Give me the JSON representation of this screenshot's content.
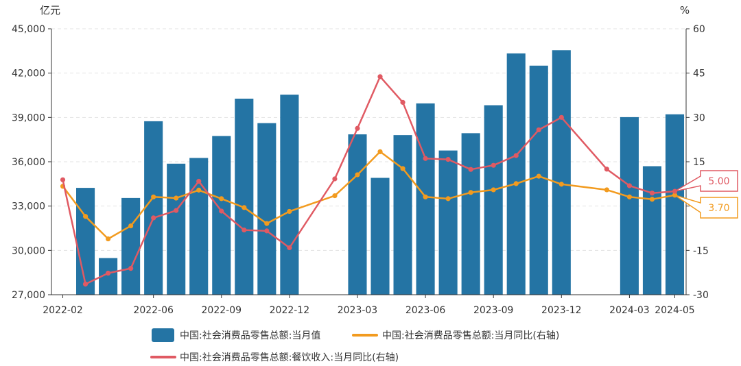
{
  "chart_data": {
    "type": "bar",
    "left_unit": "亿元",
    "right_unit": "%",
    "x_tick_labels": [
      "2022-02",
      "2022-06",
      "2022-09",
      "2022-12",
      "2023-03",
      "2023-06",
      "2023-09",
      "2023-12",
      "2024-03",
      "2024-05"
    ],
    "months": [
      "2022-02",
      "2022-03",
      "2022-04",
      "2022-05",
      "2022-06",
      "2022-07",
      "2022-08",
      "2022-09",
      "2022-10",
      "2022-11",
      "2022-12",
      "2023-01",
      "2023-02",
      "2023-03",
      "2023-04",
      "2023-05",
      "2023-06",
      "2023-07",
      "2023-08",
      "2023-09",
      "2023-10",
      "2023-11",
      "2023-12",
      "2024-01",
      "2024-02",
      "2024-03",
      "2024-04",
      "2024-05"
    ],
    "ylim_left": [
      27000,
      45000
    ],
    "yticks_left": [
      "27,000",
      "30,000",
      "33,000",
      "36,000",
      "39,000",
      "42,000",
      "45,000"
    ],
    "ylim_right": [
      -30,
      60
    ],
    "yticks_right": [
      "-30",
      "-15",
      "0",
      "15",
      "30",
      "45",
      "60"
    ],
    "grid": true,
    "legend_position": "bottom",
    "series": [
      {
        "name": "中国:社会消费品零售总额:当月值",
        "kind": "bar",
        "axis": "left",
        "color": "#2474a4",
        "values": [
          null,
          34233,
          29483,
          33547,
          38742,
          35870,
          36258,
          37745,
          40271,
          38615,
          40542,
          null,
          null,
          37855,
          34910,
          37803,
          39951,
          36761,
          37933,
          39826,
          43333,
          42505,
          43550,
          null,
          null,
          39020,
          35699,
          39211
        ]
      },
      {
        "name": "中国:社会消费品零售总额:当月同比(右轴)",
        "kind": "line",
        "axis": "right",
        "color": "#f29b1f",
        "values": [
          6.7,
          -3.5,
          -11.1,
          -6.7,
          3.1,
          2.7,
          5.4,
          2.5,
          -0.5,
          -5.9,
          -1.8,
          null,
          3.5,
          10.6,
          18.4,
          12.7,
          3.1,
          2.5,
          4.6,
          5.5,
          7.6,
          10.1,
          7.4,
          null,
          5.5,
          3.1,
          2.3,
          3.7
        ]
      },
      {
        "name": "中国:社会消费品零售总额:餐饮收入:当月同比(右轴)",
        "kind": "line",
        "axis": "right",
        "color": "#e05a63",
        "values": [
          8.9,
          -26.4,
          -22.7,
          -21.1,
          -4.0,
          -1.5,
          8.4,
          -1.7,
          -8.1,
          -8.4,
          -14.1,
          null,
          9.2,
          26.3,
          43.8,
          35.1,
          16.1,
          15.8,
          12.4,
          13.8,
          17.1,
          25.8,
          30.0,
          null,
          12.5,
          6.9,
          4.4,
          5.0
        ]
      }
    ],
    "callouts": [
      {
        "value_label": "5.00",
        "series": 2
      },
      {
        "value_label": "3.70",
        "series": 1
      }
    ]
  }
}
